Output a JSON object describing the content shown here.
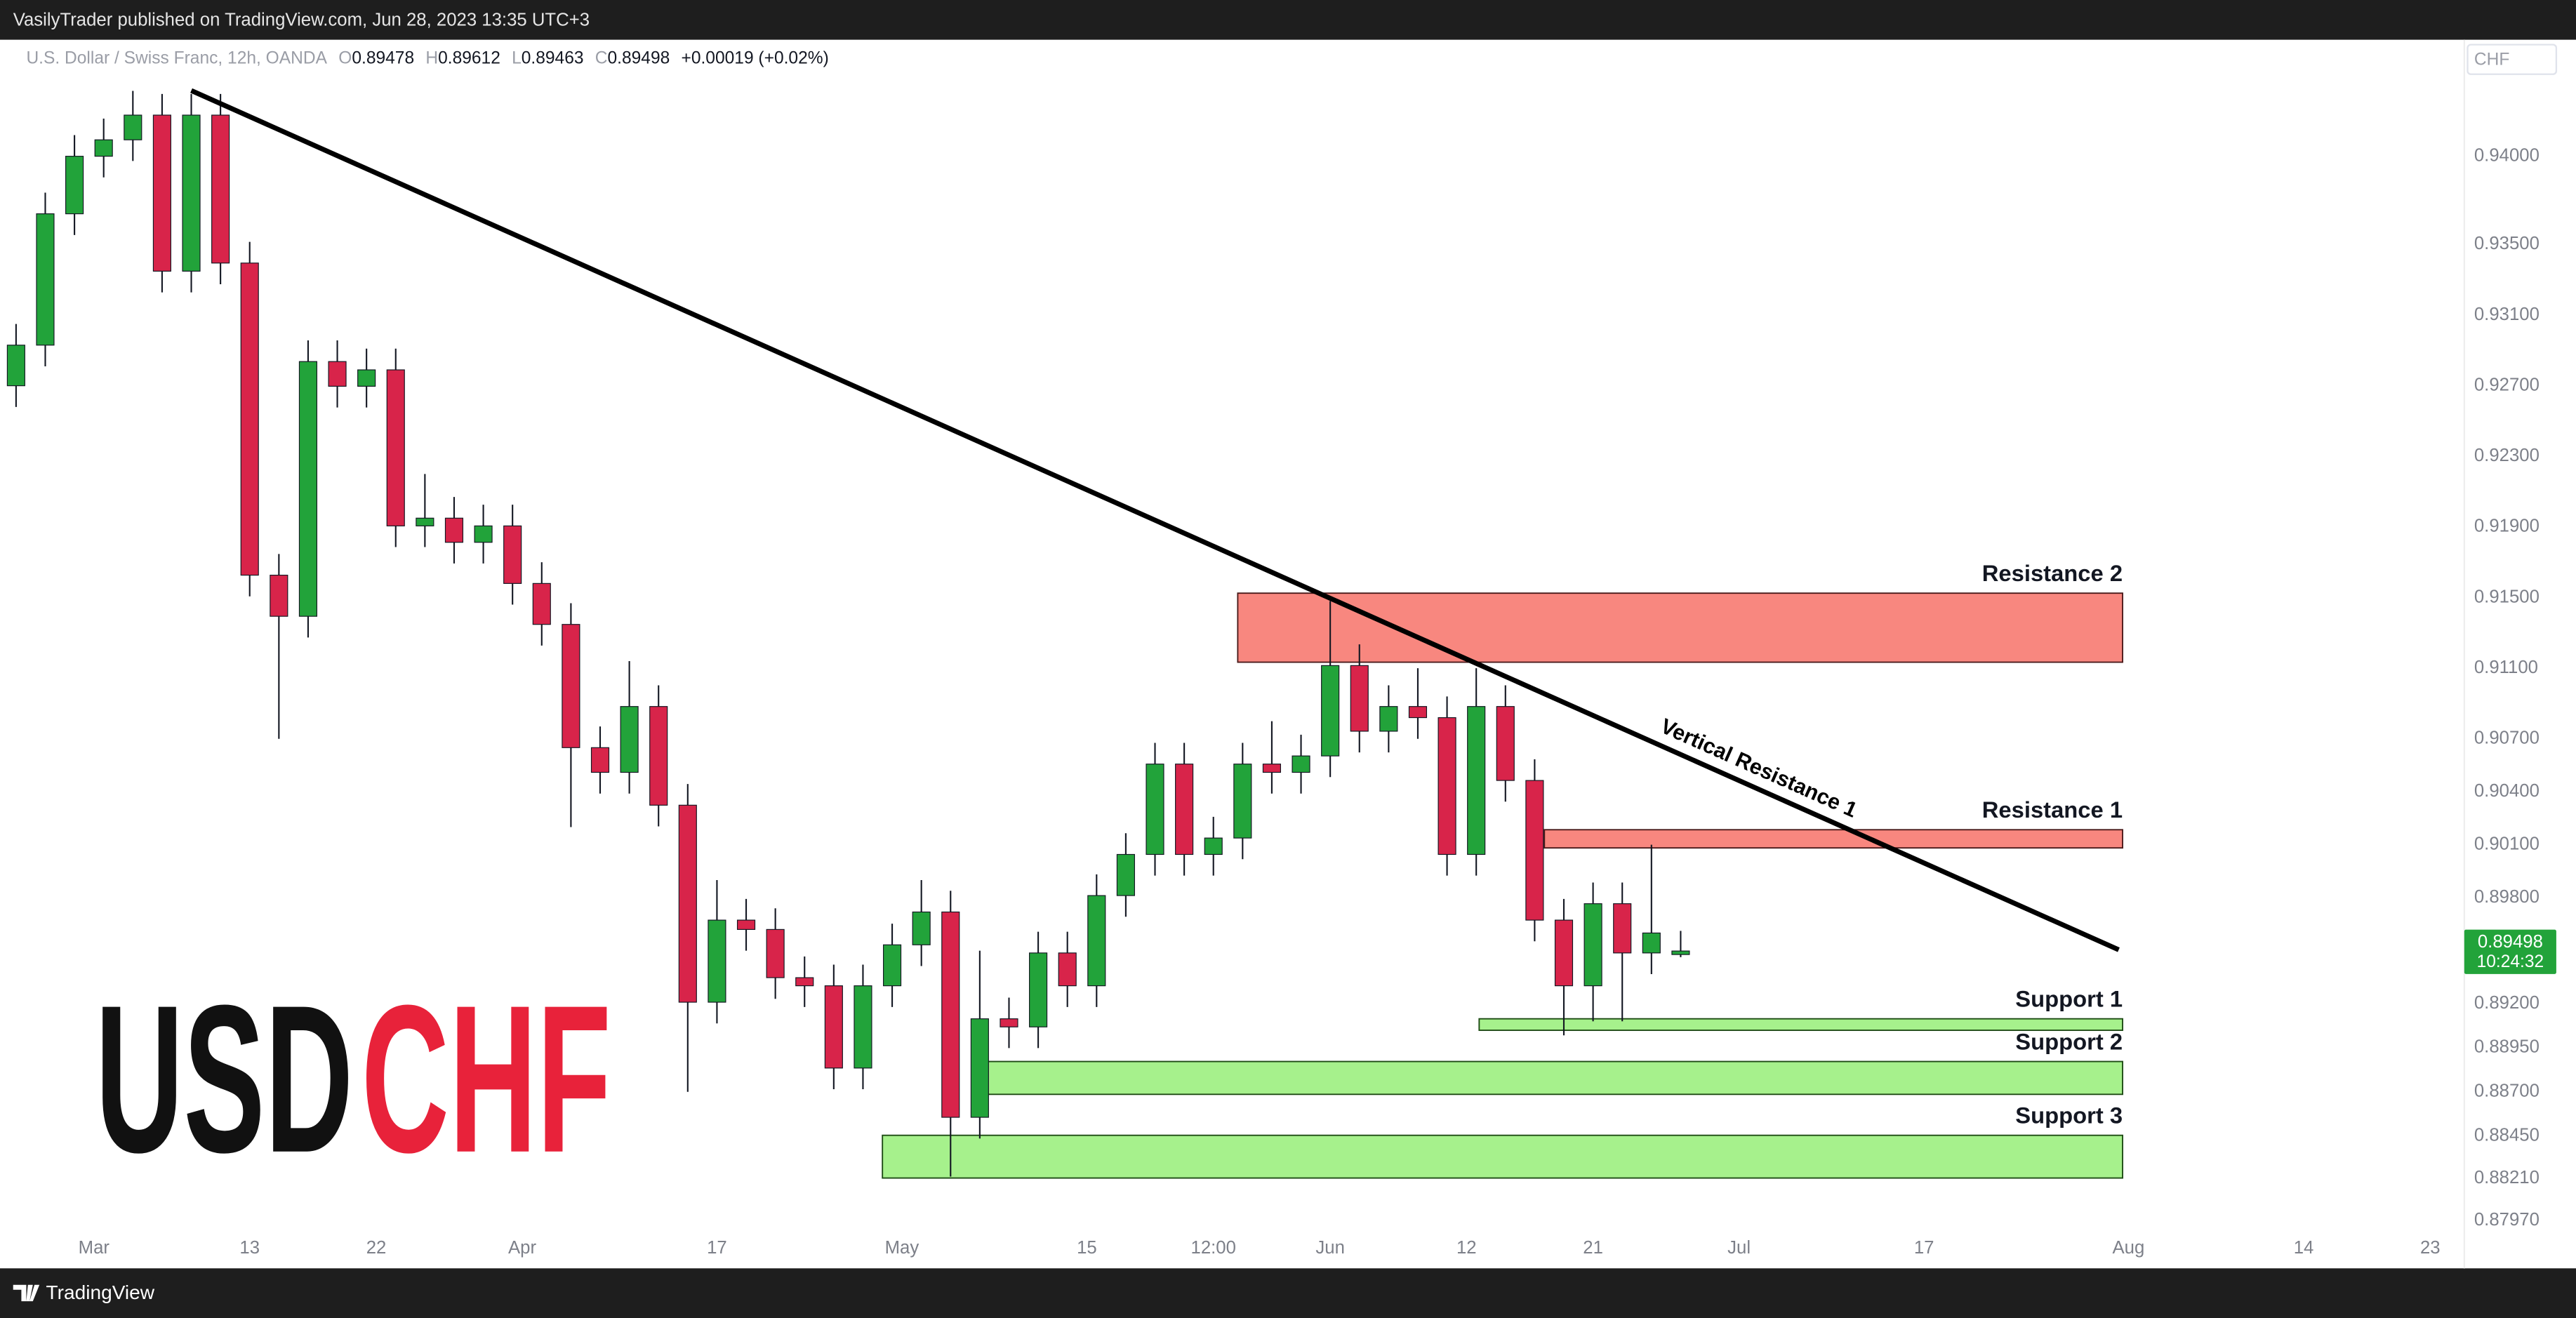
{
  "header": {
    "publisher": "VasilyTrader published on TradingView.com, Jun 28, 2023 13:35 UTC+3",
    "symbol": "U.S. Dollar / Swiss Franc, 12h, OANDA",
    "ohlc_labels": [
      "O",
      "H",
      "L",
      "C"
    ],
    "change": "+0.00019 (+0.02%)",
    "currency": "CHF",
    "countdown": "10:24:32",
    "brand": "TradingView"
  },
  "watermark": {
    "parts": [
      {
        "text": "USD",
        "color": "#111111"
      },
      {
        "text": "CHF",
        "color": "#e8223a"
      }
    ]
  },
  "chart_data": {
    "type": "candlestick",
    "up_color": "#22a33a",
    "down_color": "#d8244a",
    "grid": false,
    "x": [
      0,
      3,
      6,
      9,
      12,
      15,
      18,
      21,
      24,
      27,
      30,
      33,
      36,
      39,
      42,
      45,
      48,
      51,
      54,
      57,
      60,
      63,
      66,
      69,
      72,
      75,
      78,
      81,
      84,
      87,
      90,
      93,
      96,
      99,
      102,
      105,
      108,
      111,
      114,
      117,
      120,
      123,
      126,
      129,
      132,
      135,
      138,
      141,
      144,
      147,
      150,
      153,
      156,
      159,
      162,
      165,
      168,
      171
    ],
    "open": [
      0.927,
      0.9293,
      0.93674,
      0.94,
      0.94093,
      0.94233,
      0.93349,
      0.94233,
      0.93395,
      0.91627,
      0.91394,
      0.92837,
      0.92697,
      0.9279,
      0.91906,
      0.9195,
      0.91813,
      0.91906,
      0.9158,
      0.91348,
      0.9065,
      0.9051,
      0.90883,
      0.90324,
      0.89208,
      0.89673,
      0.8962,
      0.89347,
      0.89301,
      0.88835,
      0.89301,
      0.89533,
      0.89719,
      0.88556,
      0.89114,
      0.89068,
      0.89487,
      0.89301,
      0.89812,
      0.90045,
      0.90557,
      0.90045,
      0.90138,
      0.90557,
      0.9051,
      0.90603,
      0.91115,
      0.90743,
      0.90883,
      0.9082,
      0.90045,
      0.90883,
      0.90464,
      0.89673,
      0.89301,
      0.89766,
      0.89487,
      0.89478
    ],
    "high": [
      0.9305,
      0.93794,
      0.9412,
      0.94213,
      0.9437,
      0.94353,
      0.94353,
      0.94353,
      0.93515,
      0.91747,
      0.92957,
      0.92957,
      0.9291,
      0.9291,
      0.922,
      0.9207,
      0.92026,
      0.92026,
      0.917,
      0.91468,
      0.9077,
      0.9114,
      0.91003,
      0.90444,
      0.899,
      0.89793,
      0.8974,
      0.89467,
      0.89421,
      0.89421,
      0.89653,
      0.899,
      0.89839,
      0.895,
      0.89234,
      0.89607,
      0.89607,
      0.89932,
      0.90165,
      0.90677,
      0.90677,
      0.90258,
      0.90677,
      0.908,
      0.90723,
      0.9148,
      0.91235,
      0.91003,
      0.911,
      0.9094,
      0.911,
      0.91003,
      0.90584,
      0.89793,
      0.89886,
      0.89886,
      0.901,
      0.89612
    ],
    "low": [
      0.9258,
      0.9281,
      0.93554,
      0.9388,
      0.93973,
      0.93229,
      0.93229,
      0.93275,
      0.91507,
      0.907,
      0.91274,
      0.92577,
      0.92577,
      0.91786,
      0.91786,
      0.91693,
      0.91693,
      0.9146,
      0.91228,
      0.902,
      0.9039,
      0.9039,
      0.90204,
      0.887,
      0.89088,
      0.895,
      0.89227,
      0.89181,
      0.88715,
      0.88715,
      0.89181,
      0.89413,
      0.8822,
      0.88436,
      0.88948,
      0.88948,
      0.89181,
      0.89181,
      0.89692,
      0.89925,
      0.89925,
      0.89925,
      0.90018,
      0.9039,
      0.9039,
      0.90483,
      0.90623,
      0.90623,
      0.907,
      0.89925,
      0.89925,
      0.90344,
      0.89553,
      0.8902,
      0.891,
      0.891,
      0.89367,
      0.89463
    ],
    "close": [
      0.9293,
      0.93674,
      0.94,
      0.94093,
      0.94233,
      0.93349,
      0.94233,
      0.93395,
      0.91627,
      0.91394,
      0.92837,
      0.92697,
      0.9279,
      0.91906,
      0.9195,
      0.91813,
      0.91906,
      0.9158,
      0.91348,
      0.9065,
      0.9051,
      0.90883,
      0.90324,
      0.89208,
      0.89673,
      0.8962,
      0.89347,
      0.89301,
      0.88835,
      0.89301,
      0.89533,
      0.89719,
      0.88556,
      0.89114,
      0.89068,
      0.89487,
      0.89301,
      0.89812,
      0.90045,
      0.90557,
      0.90045,
      0.90138,
      0.90557,
      0.9051,
      0.90603,
      0.91115,
      0.90743,
      0.90883,
      0.9082,
      0.90045,
      0.90883,
      0.90464,
      0.89673,
      0.89301,
      0.89766,
      0.89487,
      0.896,
      0.89498
    ],
    "xlim": [
      -0.3,
      251.5
    ],
    "ylim": [
      0.877,
      0.9466
    ],
    "xticks": [
      {
        "value": 8,
        "label": "Mar"
      },
      {
        "value": 24,
        "label": "13"
      },
      {
        "value": 37,
        "label": "22"
      },
      {
        "value": 52,
        "label": "Apr"
      },
      {
        "value": 72,
        "label": "17"
      },
      {
        "value": 91,
        "label": "May"
      },
      {
        "value": 110,
        "label": "15"
      },
      {
        "value": 123,
        "label": "12:00"
      },
      {
        "value": 135,
        "label": "Jun"
      },
      {
        "value": 149,
        "label": "12"
      },
      {
        "value": 162,
        "label": "21"
      },
      {
        "value": 177,
        "label": "Jul"
      },
      {
        "value": 196,
        "label": "17"
      },
      {
        "value": 217,
        "label": "Aug"
      },
      {
        "value": 235,
        "label": "14"
      },
      {
        "value": 248,
        "label": "23"
      }
    ],
    "yticks": [
      {
        "value": 0.94,
        "label": "0.94000"
      },
      {
        "value": 0.935,
        "label": "0.93500"
      },
      {
        "value": 0.931,
        "label": "0.93100"
      },
      {
        "value": 0.927,
        "label": "0.92700"
      },
      {
        "value": 0.923,
        "label": "0.92300"
      },
      {
        "value": 0.919,
        "label": "0.91900"
      },
      {
        "value": 0.915,
        "label": "0.91500"
      },
      {
        "value": 0.911,
        "label": "0.91100"
      },
      {
        "value": 0.907,
        "label": "0.90700"
      },
      {
        "value": 0.904,
        "label": "0.90400"
      },
      {
        "value": 0.901,
        "label": "0.90100"
      },
      {
        "value": 0.898,
        "label": "0.89800"
      },
      {
        "value": 0.892,
        "label": "0.89200"
      },
      {
        "value": 0.8895,
        "label": "0.88950"
      },
      {
        "value": 0.887,
        "label": "0.88700"
      },
      {
        "value": 0.8845,
        "label": "0.88450"
      },
      {
        "value": 0.8821,
        "label": "0.88210"
      },
      {
        "value": 0.8797,
        "label": "0.87970"
      }
    ],
    "zones": [
      {
        "label": "Resistance 2",
        "x": [
          125.5,
          216.4
        ],
        "y": [
          0.91134,
          0.91525
        ],
        "color": "#f8877f",
        "stroke": "#4a1a1a"
      },
      {
        "label": "Resistance 1",
        "x": [
          157,
          216.4
        ],
        "y": [
          0.90082,
          0.90185
        ],
        "color": "#f8877f",
        "stroke": "#4a1a1a"
      },
      {
        "label": "Support 1",
        "x": [
          150.3,
          216.4
        ],
        "y": [
          0.89049,
          0.89114
        ],
        "color": "#a6f18c",
        "stroke": "#1d4a14"
      },
      {
        "label": "Support 2",
        "x": [
          99.5,
          216.4
        ],
        "y": [
          0.88686,
          0.88872
        ],
        "color": "#a6f18c",
        "stroke": "#1d4a14"
      },
      {
        "label": "Support 3",
        "x": [
          89,
          216.4
        ],
        "y": [
          0.88212,
          0.88454
        ],
        "color": "#a6f18c",
        "stroke": "#1d4a14"
      }
    ],
    "trendlines": [
      {
        "label": "Vertical Resistance 1",
        "x": [
          18,
          216
        ],
        "y": [
          0.94372,
          0.89505
        ],
        "color": "#000000"
      }
    ]
  }
}
